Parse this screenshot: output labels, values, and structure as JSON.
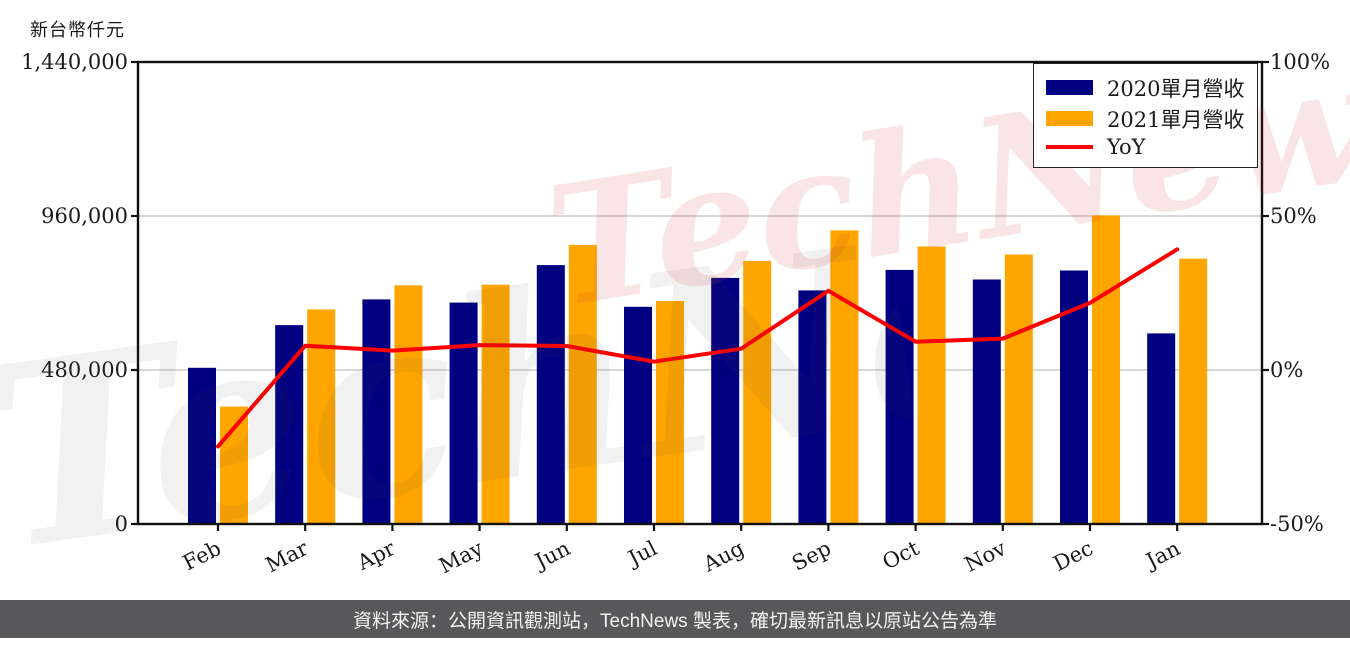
{
  "unit_label": "新台幣仟元",
  "watermark": {
    "text": "TechNews"
  },
  "footer": {
    "text": "資料來源：公開資訊觀測站，TechNews 製表，確切最新訊息以原站公告為準"
  },
  "legend": {
    "items": [
      {
        "label": "2020單月營收",
        "type": "swatch",
        "color": "#000080"
      },
      {
        "label": "2021單月營收",
        "type": "swatch",
        "color": "#FFA500"
      },
      {
        "label": "YoY",
        "type": "line",
        "color": "#FF0000"
      }
    ]
  },
  "axes": {
    "left_ticks": [
      "1,440,000",
      "960,000",
      "480,000",
      "0"
    ],
    "left_tick_values": [
      1440000,
      960000,
      480000,
      0
    ],
    "right_ticks": [
      "100%",
      "50%",
      "0%",
      "-50%"
    ],
    "right_tick_values": [
      100,
      50,
      0,
      -50
    ]
  },
  "chart_data": {
    "type": "bar",
    "title": "",
    "xlabel": "",
    "ylabel": "新台幣仟元",
    "categories": [
      "Feb",
      "Mar",
      "Apr",
      "May",
      "Jun",
      "Jul",
      "Aug",
      "Sep",
      "Oct",
      "Nov",
      "Dec",
      "Jan"
    ],
    "series": [
      {
        "name": "2020單月營收",
        "type": "bar",
        "axis": "left",
        "color": "#000080",
        "values": [
          487000,
          620000,
          700000,
          690000,
          807000,
          677000,
          767000,
          728000,
          792000,
          762000,
          790000,
          594000
        ]
      },
      {
        "name": "2021單月營收",
        "type": "bar",
        "axis": "left",
        "color": "#FFA500",
        "values": [
          366000,
          669000,
          744000,
          746000,
          870000,
          695000,
          820000,
          915000,
          865000,
          840000,
          962000,
          827000
        ]
      },
      {
        "name": "YoY",
        "type": "line",
        "axis": "right",
        "color": "#FF0000",
        "unit": "%",
        "values": [
          -24.8,
          7.9,
          6.3,
          8.1,
          7.8,
          2.7,
          6.9,
          25.7,
          9.2,
          10.2,
          21.8,
          39.2
        ]
      }
    ],
    "left_axis": {
      "min": 0,
      "max": 1440000,
      "ticks": [
        0,
        480000,
        960000,
        1440000
      ]
    },
    "right_axis": {
      "min": -50,
      "max": 100,
      "ticks": [
        -50,
        0,
        50,
        100
      ],
      "unit": "%"
    },
    "grid": "horizontal",
    "legend_position": "top-right"
  }
}
